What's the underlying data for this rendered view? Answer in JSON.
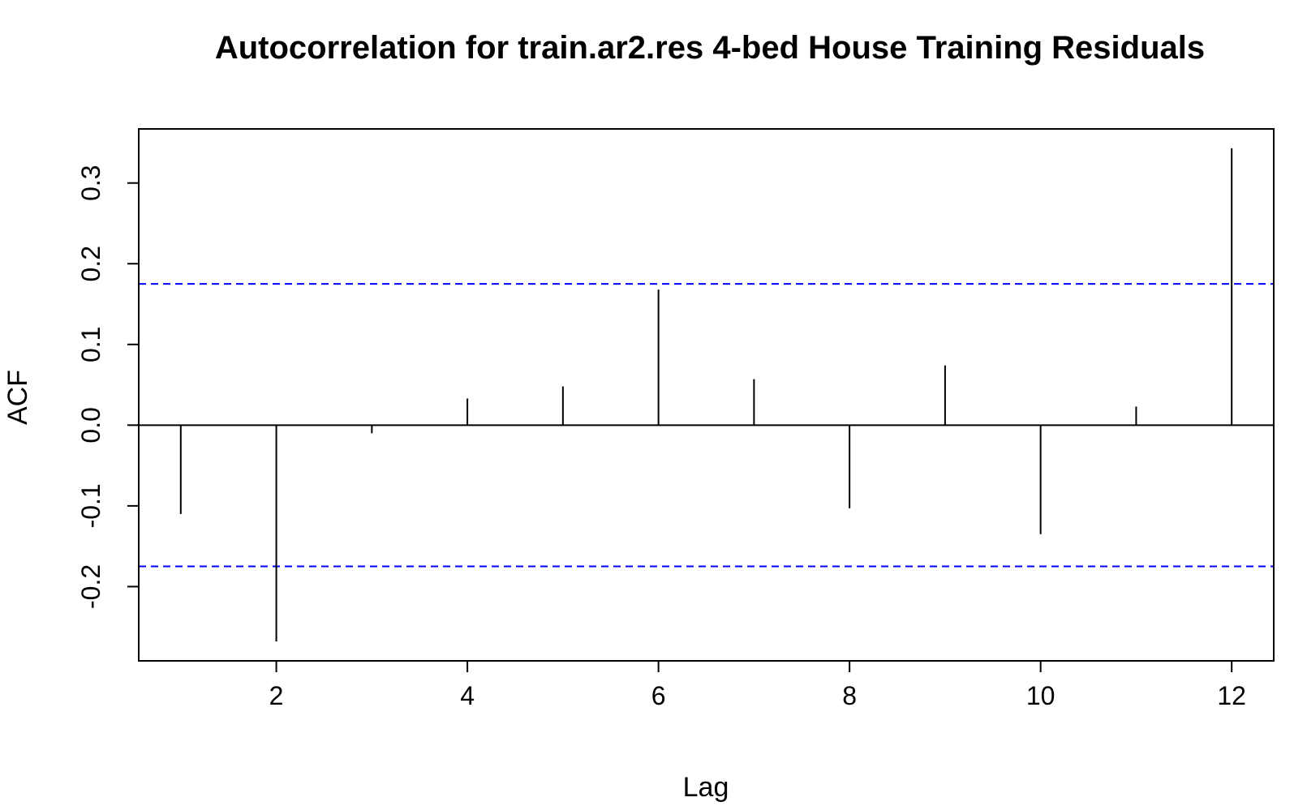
{
  "chart_data": {
    "type": "bar",
    "title": "Autocorrelation for train.ar2.res 4-bed House Training Residuals",
    "xlabel": "Lag",
    "ylabel": "ACF",
    "x": [
      1,
      2,
      3,
      4,
      5,
      6,
      7,
      8,
      9,
      10,
      11,
      12
    ],
    "values": [
      -0.11,
      -0.268,
      -0.01,
      0.033,
      0.048,
      0.168,
      0.057,
      -0.103,
      0.074,
      -0.135,
      0.023,
      0.343
    ],
    "xlim": [
      0.56,
      12.44
    ],
    "ylim": [
      -0.292,
      0.367
    ],
    "xticks": [
      2,
      4,
      6,
      8,
      10,
      12
    ],
    "yticks": [
      -0.2,
      -0.1,
      0.0,
      0.1,
      0.2,
      0.3
    ],
    "xtick_labels": [
      "2",
      "4",
      "6",
      "8",
      "10",
      "12"
    ],
    "ytick_labels": [
      "-0.2",
      "-0.1",
      "0.0",
      "0.1",
      "0.2",
      "0.3"
    ],
    "confidence_bounds": [
      0.175,
      -0.175
    ],
    "bar_color": "#000000",
    "bound_color": "#0000ff",
    "grid": false
  }
}
